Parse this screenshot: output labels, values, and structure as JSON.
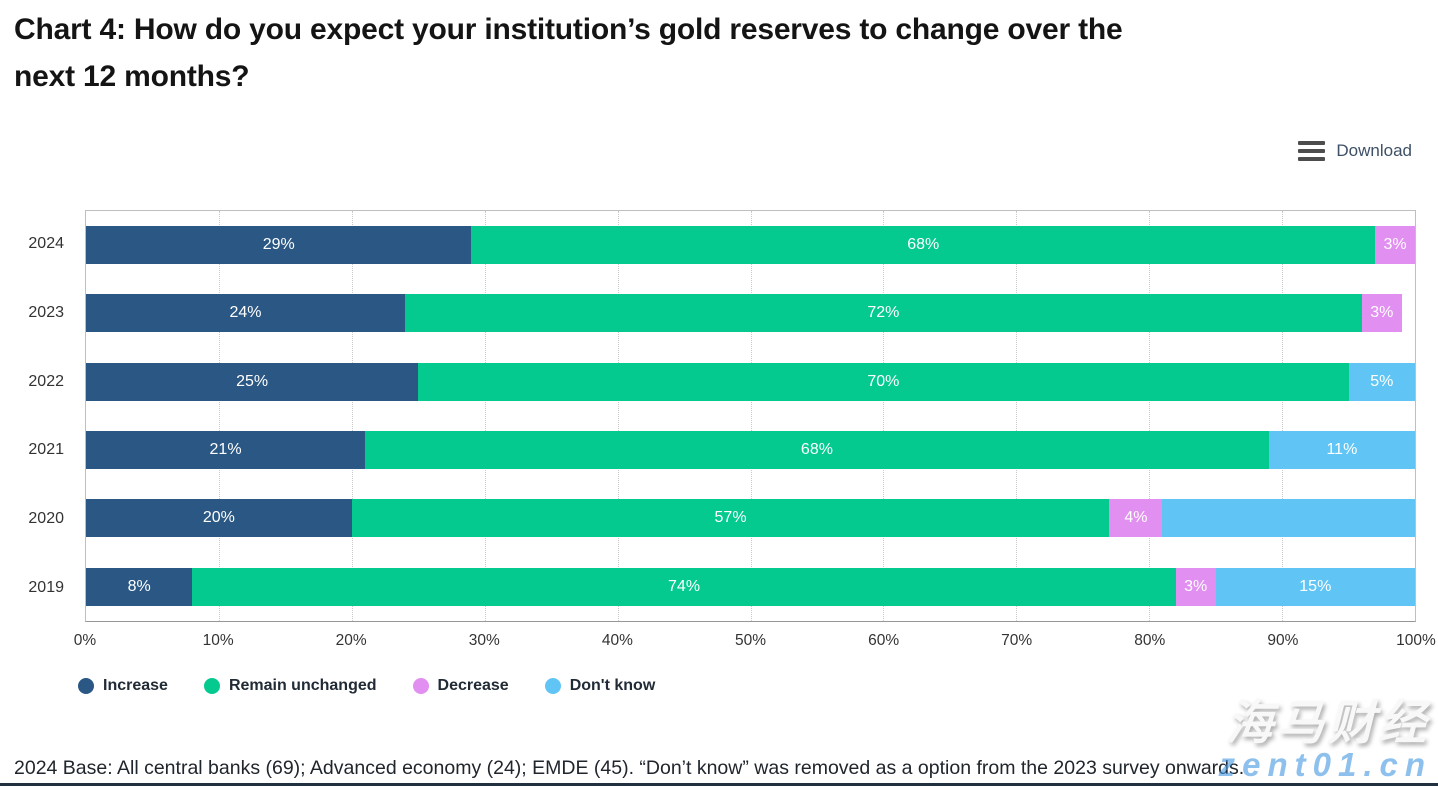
{
  "page": {
    "title_line1": "Chart 4: How do you expect your institution’s gold reserves to change over the",
    "title_line2": "next 12 months?",
    "download_label": "Download",
    "footnote": "2024 Base: All central banks (69); Advanced economy (24); EMDE (45). “Don’t know” was removed as a option from the 2023 survey onwards.",
    "watermark_cjk": "海马财经",
    "watermark_domain": "zent01.cn"
  },
  "colors": {
    "Increase": "#2a5783",
    "Remain unchanged": "#04ca90",
    "Decrease": "#e18ff0",
    "Don't know": "#60c5f5"
  },
  "chart_data": {
    "type": "bar",
    "orientation": "horizontal",
    "stacked": true,
    "title": "Chart 4: How do you expect your institution’s gold reserves to change over the next 12 months?",
    "categories": [
      "2024",
      "2023",
      "2022",
      "2021",
      "2020",
      "2019"
    ],
    "legend": [
      {
        "name": "Increase",
        "color": "#2a5783"
      },
      {
        "name": "Remain unchanged",
        "color": "#04ca90"
      },
      {
        "name": "Decrease",
        "color": "#e18ff0"
      },
      {
        "name": "Don't know",
        "color": "#60c5f5"
      }
    ],
    "rows": [
      {
        "year": "2024",
        "segments": [
          {
            "series": "Increase",
            "value": 29,
            "label": "29%"
          },
          {
            "series": "Remain unchanged",
            "value": 68,
            "label": "68%"
          },
          {
            "series": "Decrease",
            "value": 3,
            "label": "3%"
          }
        ]
      },
      {
        "year": "2023",
        "segments": [
          {
            "series": "Increase",
            "value": 24,
            "label": "24%"
          },
          {
            "series": "Remain unchanged",
            "value": 72,
            "label": "72%"
          },
          {
            "series": "Decrease",
            "value": 3,
            "label": "3%"
          }
        ]
      },
      {
        "year": "2022",
        "segments": [
          {
            "series": "Increase",
            "value": 25,
            "label": "25%"
          },
          {
            "series": "Remain unchanged",
            "value": 70,
            "label": "70%"
          },
          {
            "series": "Don't know",
            "value": 5,
            "label": "5%"
          }
        ]
      },
      {
        "year": "2021",
        "segments": [
          {
            "series": "Increase",
            "value": 21,
            "label": "21%"
          },
          {
            "series": "Remain unchanged",
            "value": 68,
            "label": "68%"
          },
          {
            "series": "Don't know",
            "value": 11,
            "label": "11%"
          }
        ]
      },
      {
        "year": "2020",
        "segments": [
          {
            "series": "Increase",
            "value": 20,
            "label": "20%"
          },
          {
            "series": "Remain unchanged",
            "value": 57,
            "label": "57%"
          },
          {
            "series": "Decrease",
            "value": 4,
            "label": "4%"
          },
          {
            "series": "Don't know",
            "value": 19,
            "label": ""
          }
        ]
      },
      {
        "year": "2019",
        "segments": [
          {
            "series": "Increase",
            "value": 8,
            "label": "8%"
          },
          {
            "series": "Remain unchanged",
            "value": 74,
            "label": "74%"
          },
          {
            "series": "Decrease",
            "value": 3,
            "label": "3%"
          },
          {
            "series": "Don't know",
            "value": 15,
            "label": "15%"
          }
        ]
      }
    ],
    "x_ticks": [
      "0%",
      "10%",
      "20%",
      "30%",
      "40%",
      "50%",
      "60%",
      "70%",
      "80%",
      "90%",
      "100%"
    ],
    "xlim": [
      0,
      100
    ],
    "grid": "vertical-dotted",
    "legend_position": "bottom",
    "bar_label_color": "#ffffff"
  }
}
